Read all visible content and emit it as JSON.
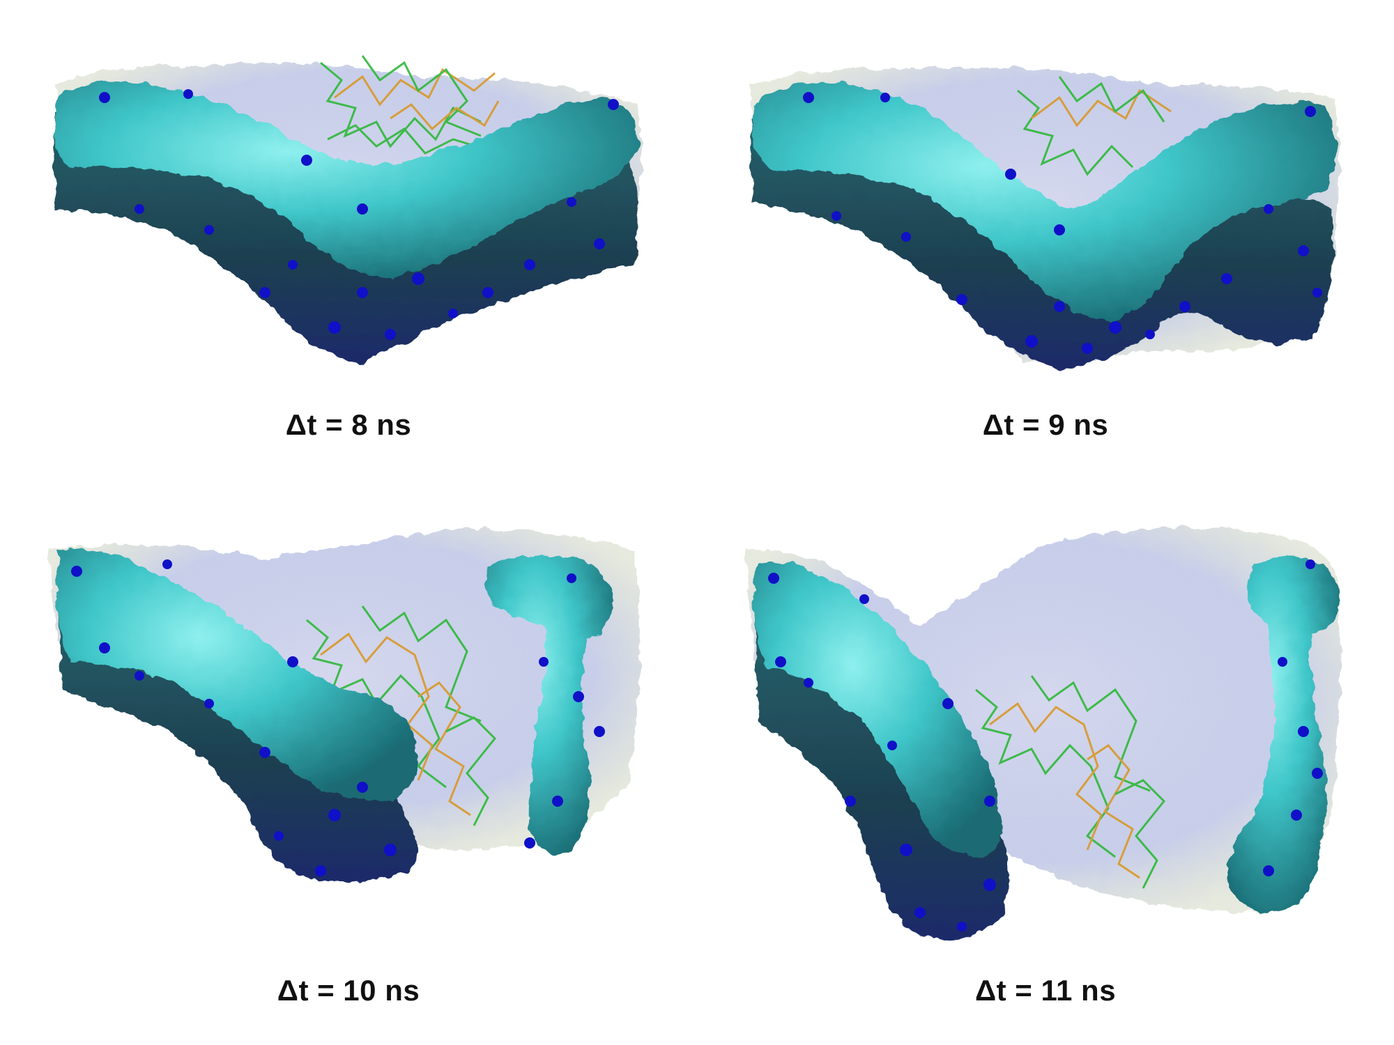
{
  "figure": {
    "panels": [
      {
        "label": "Δt = 8 ns"
      },
      {
        "label": "Δt = 9 ns"
      },
      {
        "label": "Δt = 10 ns"
      },
      {
        "label": "Δt = 11 ns"
      }
    ],
    "colors": {
      "surface_cyan": "#3fc6c9",
      "surface_dark": "#1d4a55",
      "surface_blue": "#1010c8",
      "ligand_green": "#2fb83a",
      "ligand_orange": "#d9982a",
      "ghost_surface": "#9aa6d8",
      "caption": "#111111"
    }
  }
}
